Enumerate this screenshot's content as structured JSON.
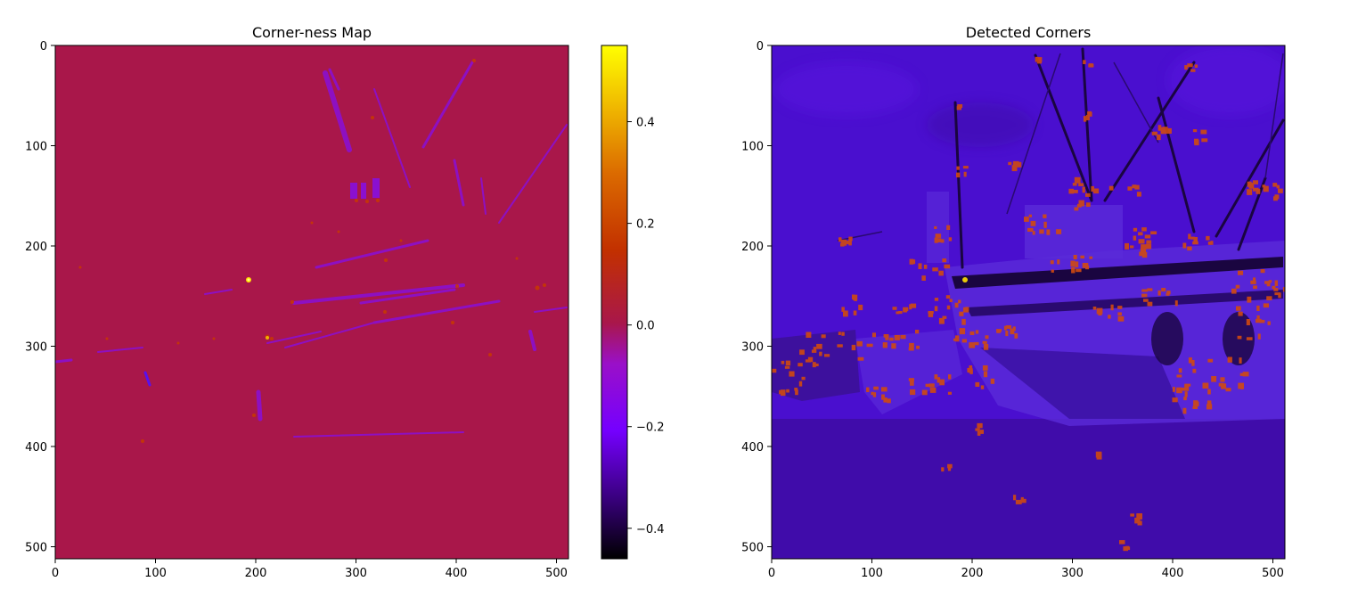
{
  "chart_data": [
    {
      "type": "heatmap",
      "title": "Corner-ness Map",
      "xlabel": "",
      "ylabel": "",
      "xlim": [
        0,
        512
      ],
      "ylim": [
        512,
        0
      ],
      "x_ticks": [
        0,
        100,
        200,
        300,
        400,
        500
      ],
      "y_ticks": [
        0,
        100,
        200,
        300,
        400,
        500
      ],
      "grid": false,
      "colormap": "gnuplot",
      "background_color": "#a9174a",
      "colorbar": {
        "range": [
          -0.46,
          0.55
        ],
        "ticks": [
          -0.4,
          -0.2,
          0.0,
          0.2,
          0.4
        ],
        "tick_labels": [
          "−0.4",
          "−0.2",
          "0.0",
          "0.2",
          "0.4"
        ]
      }
    },
    {
      "type": "heatmap",
      "title": "Detected Corners",
      "xlabel": "",
      "ylabel": "",
      "xlim": [
        0,
        512
      ],
      "ylim": [
        512,
        0
      ],
      "x_ticks": [
        0,
        100,
        200,
        300,
        400,
        500
      ],
      "y_ticks": [
        0,
        100,
        200,
        300,
        400,
        500
      ],
      "grid": false,
      "colormap": "gnuplot",
      "background_color": "#4a0fcf",
      "marker_color": "#d14a10"
    }
  ]
}
